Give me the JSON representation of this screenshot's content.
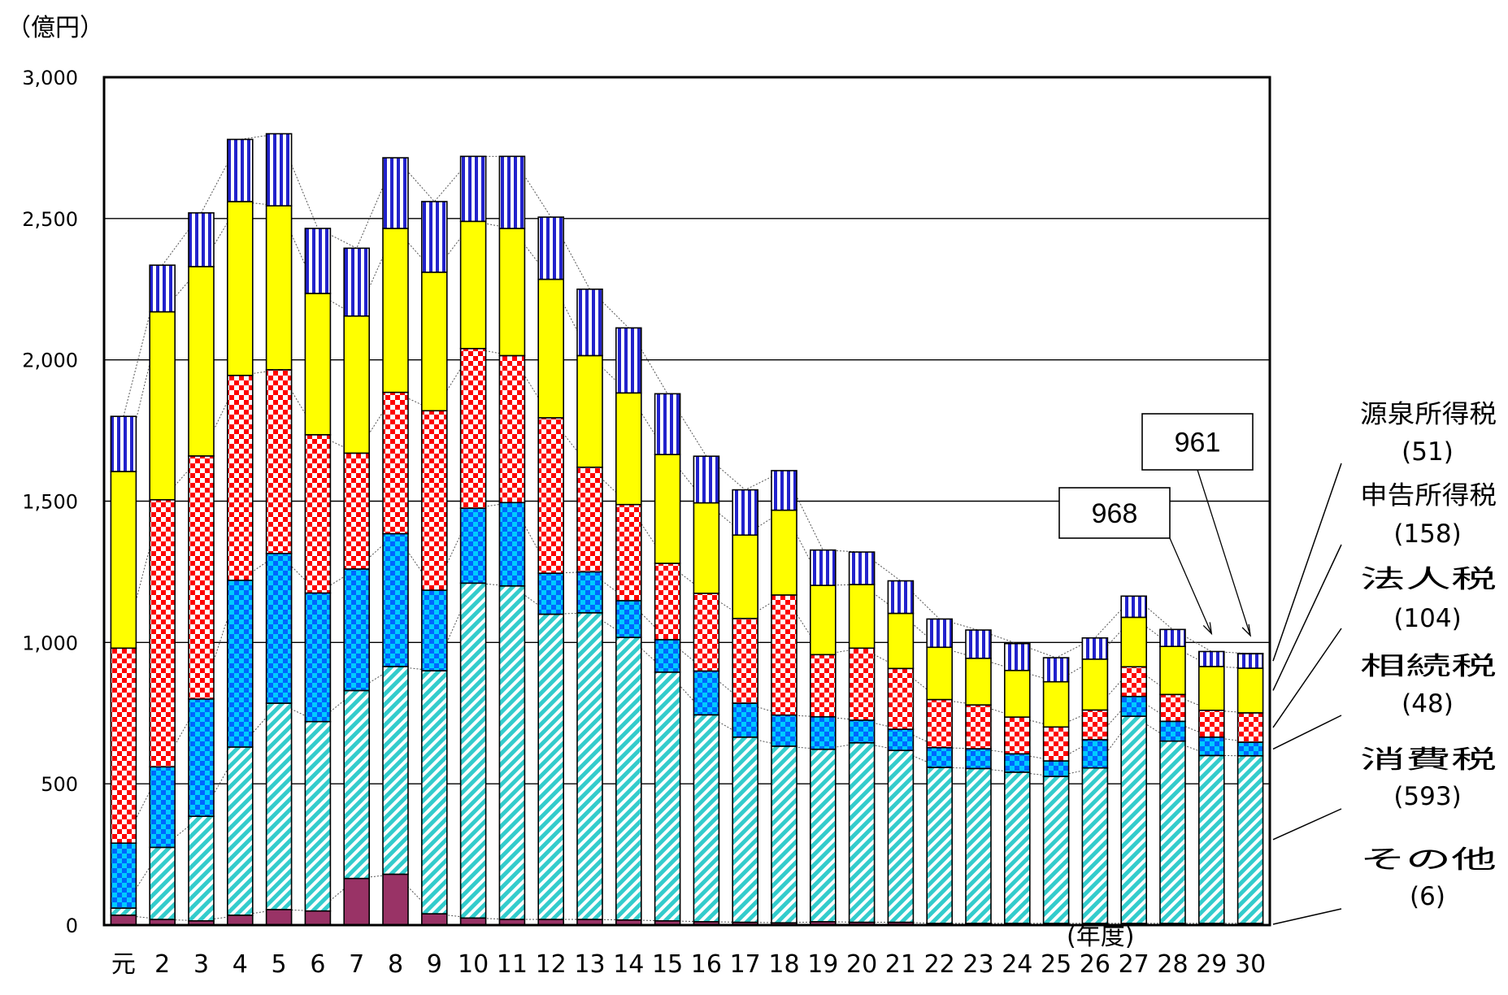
{
  "chart_data": {
    "type": "bar",
    "stacked": true,
    "yunit": "（億円）",
    "xunit": "(年度)",
    "ylim": [
      0,
      3000
    ],
    "yticks": [
      0,
      500,
      1000,
      1500,
      2000,
      2500,
      3000
    ],
    "ytick_labels": [
      "0",
      "500",
      "1,000",
      "1,500",
      "2,000",
      "2,500",
      "3,000"
    ],
    "grid": true,
    "categories": [
      "元",
      "2",
      "3",
      "4",
      "5",
      "6",
      "7",
      "8",
      "9",
      "10",
      "11",
      "12",
      "13",
      "14",
      "15",
      "16",
      "17",
      "18",
      "19",
      "20",
      "21",
      "22",
      "23",
      "24",
      "25",
      "26",
      "27",
      "28",
      "29",
      "30"
    ],
    "series": [
      {
        "name": "その他",
        "legend_value": "(6)",
        "color": "#993366",
        "pattern": "solid",
        "values": [
          35,
          20,
          15,
          35,
          55,
          50,
          165,
          180,
          40,
          25,
          20,
          20,
          20,
          18,
          15,
          12,
          10,
          8,
          12,
          10,
          10,
          6,
          6,
          6,
          6,
          6,
          6,
          6,
          6,
          6
        ]
      },
      {
        "name": "消費税",
        "legend_value": "(593)",
        "color": "#33cccc",
        "pattern": "diagonal",
        "values": [
          25,
          255,
          370,
          595,
          730,
          670,
          665,
          735,
          860,
          1185,
          1180,
          1080,
          1085,
          1000,
          880,
          732,
          655,
          625,
          610,
          635,
          608,
          552,
          548,
          535,
          520,
          550,
          733,
          645,
          594,
          593
        ]
      },
      {
        "name": "相続税",
        "legend_value": "(48)",
        "color": "#0066ff",
        "pattern": "checker",
        "values": [
          230,
          285,
          415,
          590,
          530,
          455,
          430,
          470,
          285,
          265,
          295,
          145,
          145,
          130,
          115,
          155,
          120,
          110,
          115,
          80,
          75,
          70,
          70,
          65,
          55,
          100,
          70,
          70,
          65,
          48
        ]
      },
      {
        "name": "法人税",
        "legend_value": "(104)",
        "color": "#ff0000",
        "pattern": "checker",
        "values": [
          690,
          945,
          860,
          725,
          650,
          560,
          410,
          500,
          635,
          565,
          520,
          550,
          370,
          340,
          270,
          275,
          300,
          425,
          220,
          255,
          215,
          170,
          155,
          130,
          120,
          105,
          105,
          95,
          95,
          104
        ]
      },
      {
        "name": "申告所得税",
        "legend_value": "(158)",
        "color": "#ffff00",
        "pattern": "solid",
        "values": [
          625,
          665,
          670,
          615,
          580,
          500,
          485,
          580,
          490,
          450,
          450,
          490,
          395,
          395,
          385,
          320,
          295,
          300,
          245,
          225,
          195,
          185,
          165,
          165,
          160,
          180,
          175,
          170,
          155,
          158
        ]
      },
      {
        "name": "源泉所得税",
        "legend_value": "(51)",
        "color": "#2222cc",
        "pattern": "vstripe",
        "values": [
          195,
          165,
          190,
          220,
          255,
          230,
          240,
          250,
          250,
          230,
          255,
          220,
          235,
          230,
          215,
          165,
          160,
          140,
          125,
          115,
          115,
          100,
          100,
          95,
          85,
          75,
          75,
          60,
          53,
          51
        ]
      }
    ],
    "totals": [
      1800,
      2335,
      2520,
      2780,
      2800,
      2465,
      2395,
      2715,
      2560,
      2720,
      2720,
      2505,
      2250,
      2113,
      1880,
      1659,
      1540,
      1608,
      1327,
      1320,
      1218,
      1083,
      1044,
      996,
      946,
      1016,
      1164,
      1046,
      968,
      961
    ],
    "white_top_segment_from_index": 13,
    "callouts": [
      {
        "text": "968",
        "category": "29"
      },
      {
        "text": "961",
        "category": "30"
      }
    ]
  }
}
